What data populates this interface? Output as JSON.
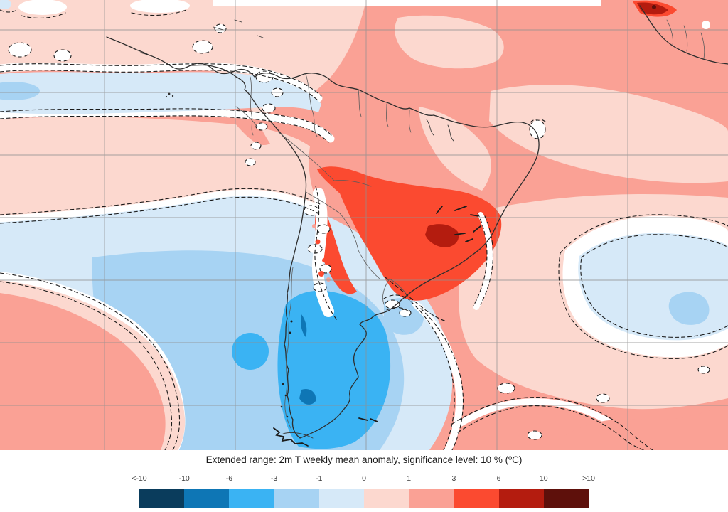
{
  "figure": {
    "title": "Extended range: 2m T weekly mean anomaly, significance level: 10 % (ºC)"
  },
  "colorbar": {
    "tick_labels": [
      "<-10",
      "-10",
      "-6",
      "-3",
      "-1",
      "0",
      "1",
      "3",
      "6",
      "10",
      ">10"
    ],
    "segment_colors": [
      "#0a3c5c",
      "#0e76b5",
      "#3ab3f3",
      "#a7d3f3",
      "#d6e9f8",
      "#fcd8cf",
      "#faa195",
      "#fb4a30",
      "#b41c0f",
      "#5e100b"
    ]
  },
  "map": {
    "type": "filled-contour-anomaly-map",
    "region_shown": "South America and adjacent Pacific / Atlantic oceans, West Africa corner",
    "grid_color": "#909090",
    "coastline_color": "#2e2e2e",
    "significance_contour_style": "dashed black lines around white (non-significant / near-zero) bands",
    "anomaly_regions": [
      {
        "area": "Bolivia, Paraguay, southern Brazil interior",
        "anomaly_c": "+3 to +6"
      },
      {
        "area": "Sao Paulo area spot",
        "anomaly_c": "+6 to +10"
      },
      {
        "area": "West Africa coastal spot (top right)",
        "anomaly_c": "+6 to +10"
      },
      {
        "area": "tropical North Atlantic and northern South America",
        "anomaly_c": "+1 to +3"
      },
      {
        "area": "northwest Pacific quadrant and Colombia",
        "anomaly_c": "0 to +1"
      },
      {
        "area": "equatorial east Pacific band",
        "anomaly_c": "-1 to 0"
      },
      {
        "area": "southeast Pacific cold pool",
        "anomaly_c": "-3 to 0"
      },
      {
        "area": "Patagonia, central Argentina and Chile",
        "anomaly_c": "-6 to -3"
      },
      {
        "area": "southern Andes streaks",
        "anomaly_c": "-10 to -6"
      },
      {
        "area": "subtropical South Atlantic blob",
        "anomaly_c": "-3 to 0"
      },
      {
        "area": "southwest Pacific corner wedge",
        "anomaly_c": "+1 to +3"
      },
      {
        "area": "southeast Atlantic corner",
        "anomaly_c": "+1 to +3"
      }
    ]
  }
}
